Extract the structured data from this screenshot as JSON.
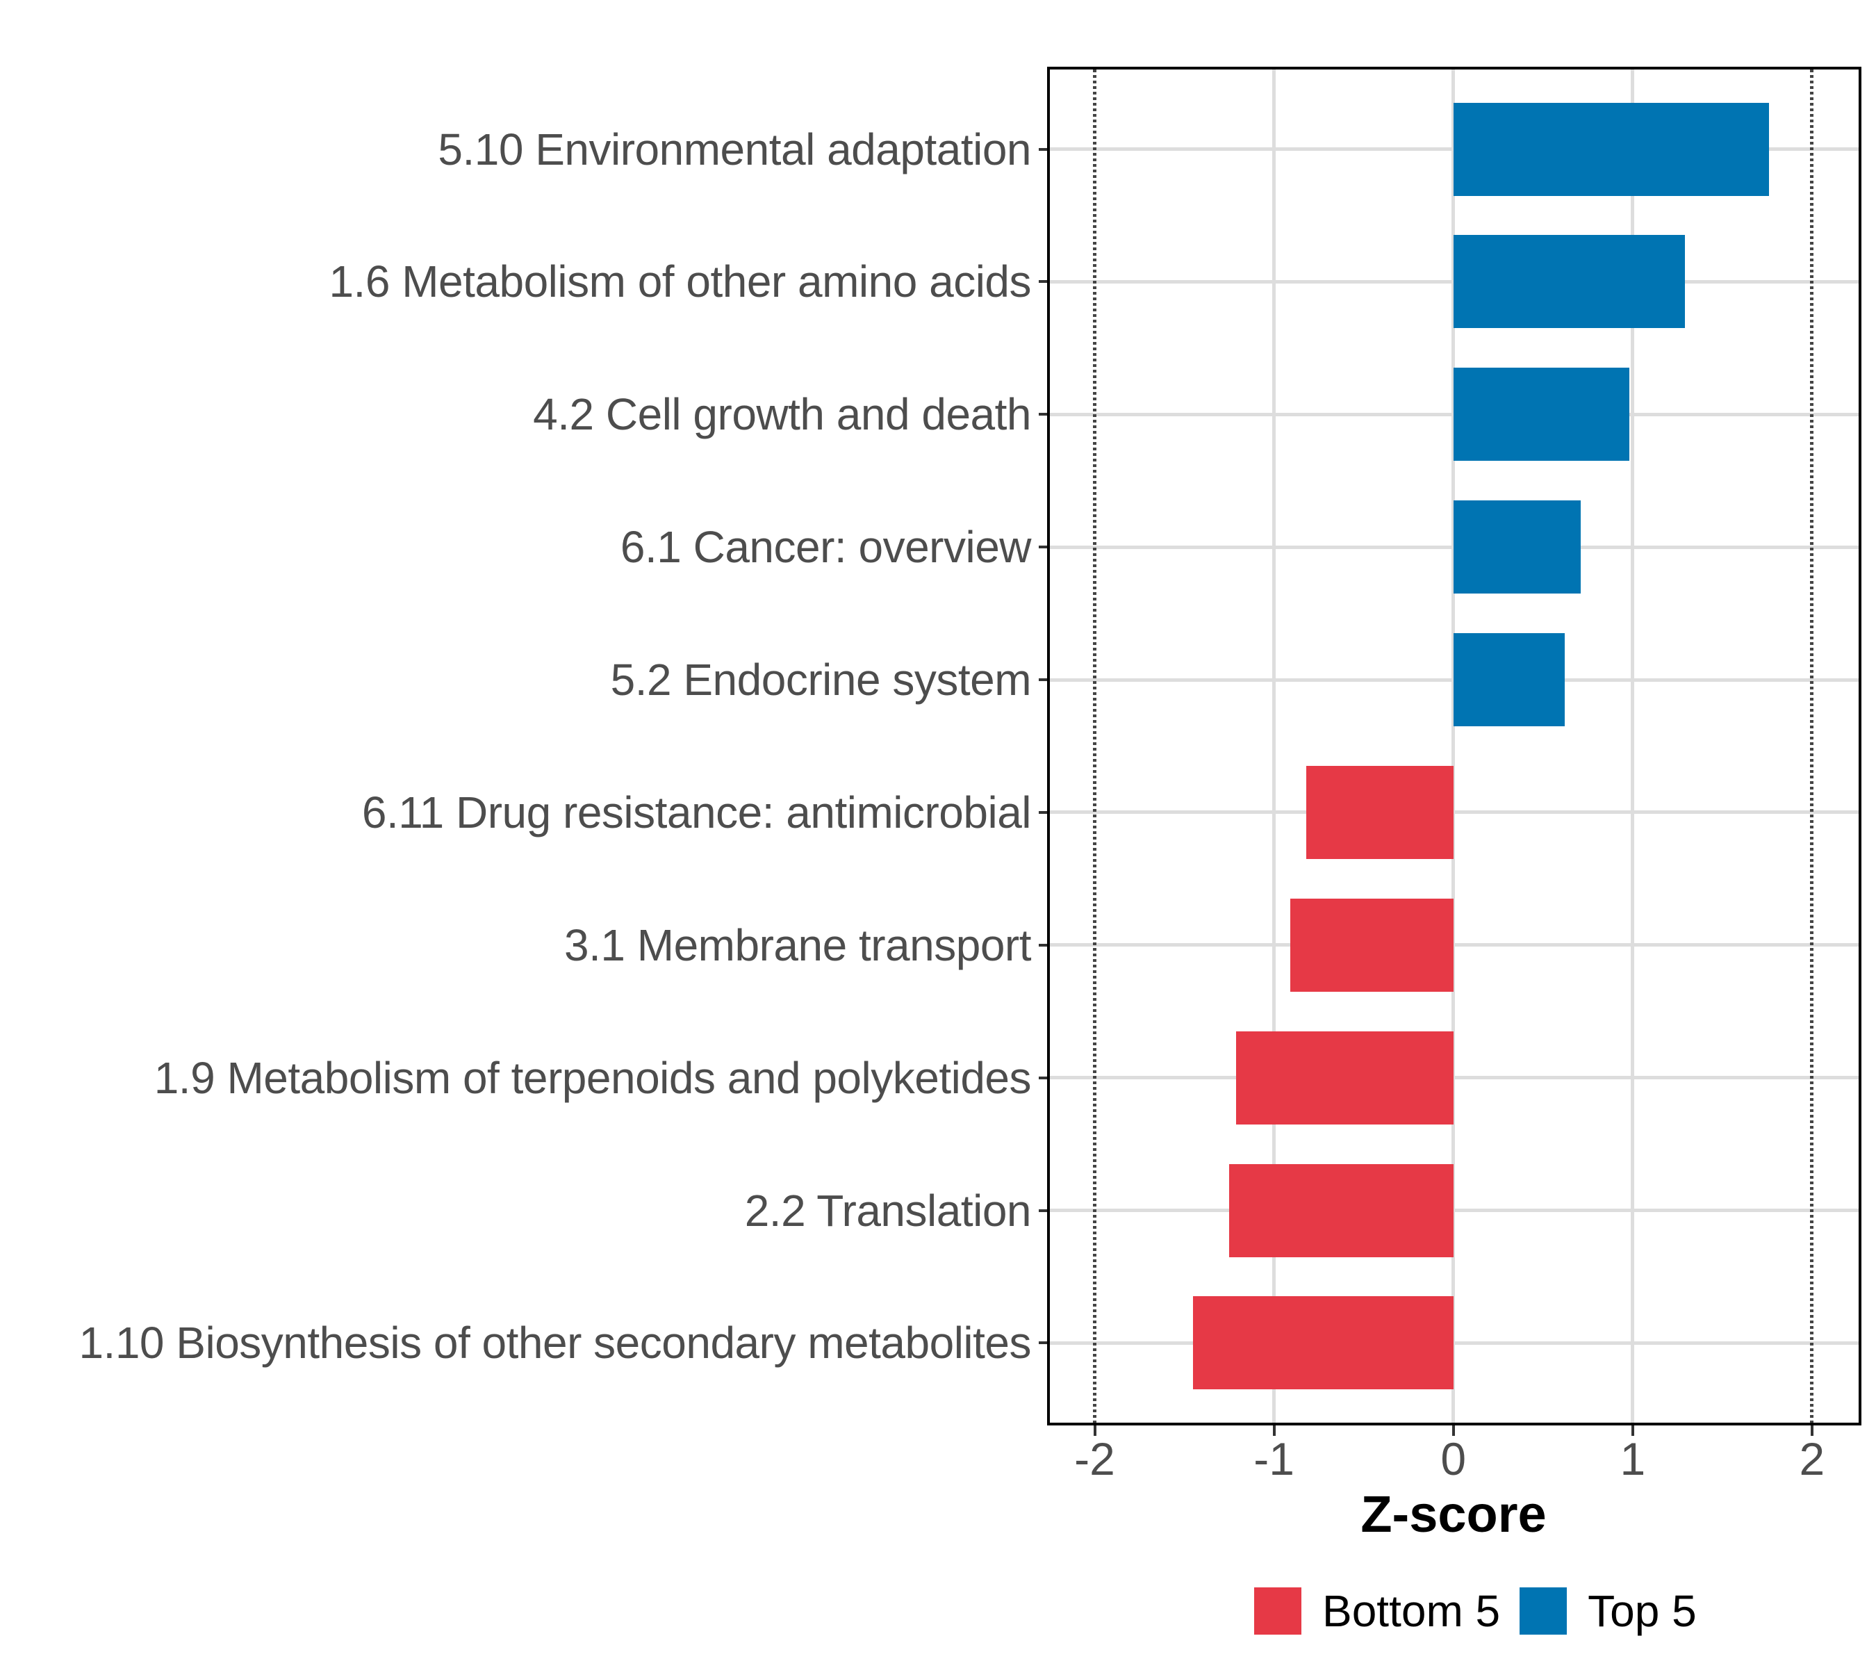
{
  "chart_data": {
    "type": "bar",
    "orientation": "horizontal",
    "title": "",
    "xlabel": "Z-score",
    "ylabel": "",
    "categories": [
      "5.10 Environmental adaptation",
      "1.6 Metabolism of other amino acids",
      "4.2 Cell growth and death",
      "6.1 Cancer: overview",
      "5.2 Endocrine system",
      "6.11 Drug resistance: antimicrobial",
      "3.1 Membrane transport",
      "1.9 Metabolism of terpenoids and polyketides",
      "2.2 Translation",
      "1.10 Biosynthesis of other secondary metabolites"
    ],
    "values": [
      1.76,
      1.29,
      0.98,
      0.71,
      0.62,
      -0.82,
      -0.91,
      -1.21,
      -1.25,
      -1.45
    ],
    "groups": [
      "Top 5",
      "Top 5",
      "Top 5",
      "Top 5",
      "Top 5",
      "Bottom 5",
      "Bottom 5",
      "Bottom 5",
      "Bottom 5",
      "Bottom 5"
    ],
    "colors": {
      "Top 5": "#0074B2",
      "Bottom 5": "#E63946"
    },
    "x_ticks": [
      "-2",
      "-1",
      "0",
      "1",
      "2"
    ],
    "x_tick_values": [
      -2,
      -1,
      0,
      1,
      2
    ],
    "xlim": [
      -2.25,
      2.26
    ],
    "reference_lines": {
      "values": [
        -2,
        2
      ],
      "style": "dotted",
      "color": "#454545"
    },
    "grid": {
      "major": true,
      "minor": false,
      "color": "#DDDDDD"
    },
    "legend_position": "bottom",
    "legend": {
      "entries": [
        {
          "label": "Bottom 5",
          "color": "#E63946"
        },
        {
          "label": "Top 5",
          "color": "#0074B2"
        }
      ]
    }
  }
}
